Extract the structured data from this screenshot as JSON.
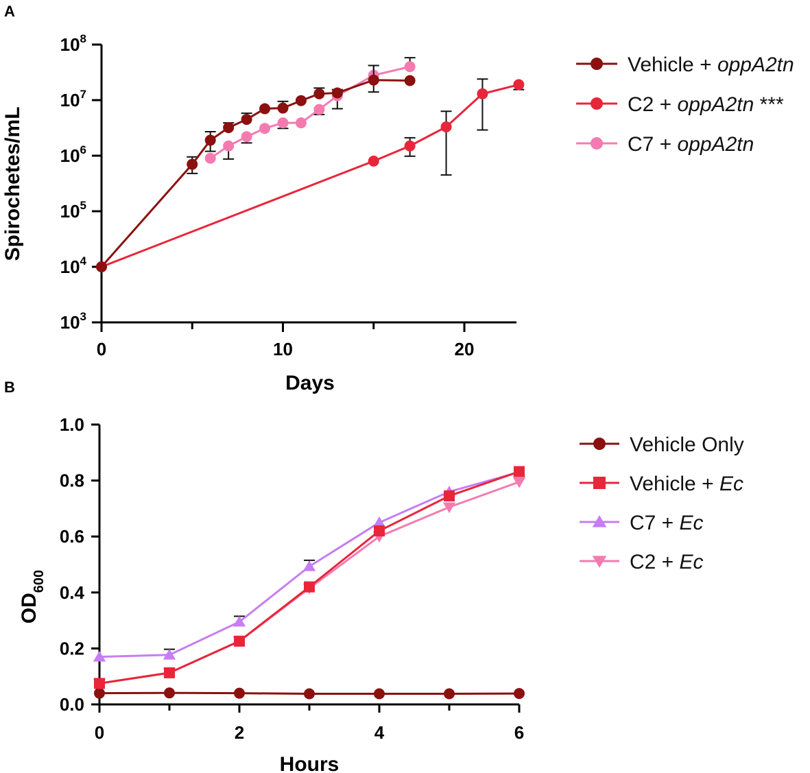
{
  "chart_data": [
    {
      "panel": "A",
      "type": "line",
      "xlabel": "Days",
      "ylabel": "Spirochetes/mL",
      "yscale": "log",
      "xlim": [
        0,
        23
      ],
      "ylim_exp": [
        3,
        8
      ],
      "xticks": [
        0,
        10,
        20
      ],
      "yticks": [
        {
          "base": "10",
          "exp": "3",
          "value": 3
        },
        {
          "base": "10",
          "exp": "4",
          "value": 4
        },
        {
          "base": "10",
          "exp": "5",
          "value": 5
        },
        {
          "base": "10",
          "exp": "6",
          "value": 6
        },
        {
          "base": "10",
          "exp": "7",
          "value": 7
        },
        {
          "base": "10",
          "exp": "8",
          "value": 8
        }
      ],
      "minor_xticks": [
        5,
        15
      ],
      "series": [
        {
          "name": "Vehicle + oppA2tn",
          "label_plain": "Vehicle + ",
          "label_italic": "oppA2tn",
          "label_suffix": "",
          "color": "#8B1010",
          "marker": "circle",
          "points": [
            {
              "x": 0,
              "y": 10000
            },
            {
              "x": 5,
              "y": 700000,
              "err_hi": 950000,
              "err_lo": 480000
            },
            {
              "x": 6,
              "y": 1900000,
              "err_hi": 2700000,
              "err_lo": 1200000
            },
            {
              "x": 7,
              "y": 3200000,
              "err_hi": 3900000
            },
            {
              "x": 8,
              "y": 4500000,
              "err_hi": 5800000
            },
            {
              "x": 9,
              "y": 7000000
            },
            {
              "x": 10,
              "y": 7200000,
              "err_hi": 9500000
            },
            {
              "x": 11,
              "y": 9800000
            },
            {
              "x": 12,
              "y": 13000000,
              "err_hi": 16500000
            },
            {
              "x": 13,
              "y": 13500000,
              "err_hi": 15500000
            },
            {
              "x": 15,
              "y": 23000000,
              "err_hi": 42000000,
              "err_lo": 14000000
            },
            {
              "x": 17,
              "y": 22500000
            }
          ]
        },
        {
          "name": "C2 + oppA2tn ***",
          "label_plain": "C2 + ",
          "label_italic": "oppA2tn",
          "label_suffix": " ***",
          "color": "#E8263A",
          "marker": "circle",
          "points": [
            {
              "x": 0,
              "y": 10000
            },
            {
              "x": 15,
              "y": 800000
            },
            {
              "x": 17,
              "y": 1500000,
              "err_hi": 2100000,
              "err_lo": 980000
            },
            {
              "x": 19,
              "y": 3300000,
              "err_hi": 6300000,
              "err_lo": 450000
            },
            {
              "x": 21,
              "y": 13000000,
              "err_hi": 24000000,
              "err_lo": 2900000
            },
            {
              "x": 23,
              "y": 19000000,
              "err_lo": 15500000
            }
          ]
        },
        {
          "name": "C7 + oppA2tn",
          "label_plain": "C7 + ",
          "label_italic": "oppA2tn",
          "label_suffix": "",
          "color": "#F47BB0",
          "marker": "circle",
          "points": [
            {
              "x": 6,
              "y": 900000
            },
            {
              "x": 7,
              "y": 1500000,
              "err_lo": 870000
            },
            {
              "x": 8,
              "y": 2200000,
              "err_lo": 1700000
            },
            {
              "x": 9,
              "y": 3100000
            },
            {
              "x": 10,
              "y": 3900000,
              "err_lo": 3100000
            },
            {
              "x": 11,
              "y": 3900000
            },
            {
              "x": 12,
              "y": 6800000,
              "err_lo": 5500000
            },
            {
              "x": 13,
              "y": 12000000,
              "err_lo": 7000000
            },
            {
              "x": 15,
              "y": 28000000,
              "err_hi": 42000000
            },
            {
              "x": 17,
              "y": 40000000,
              "err_hi": 58000000
            }
          ]
        }
      ]
    },
    {
      "panel": "B",
      "type": "line",
      "xlabel": "Hours",
      "ylabel_main": "OD",
      "ylabel_sub": "600",
      "xlim": [
        0,
        6
      ],
      "ylim": [
        0,
        1
      ],
      "xticks": [
        "0",
        "2",
        "4",
        "6"
      ],
      "xtick_values": [
        0,
        2,
        4,
        6
      ],
      "minor_xticks": [
        1,
        3,
        5
      ],
      "yticks": [
        "0.0",
        "0.2",
        "0.4",
        "0.6",
        "0.8",
        "1.0"
      ],
      "ytick_values": [
        0,
        0.2,
        0.4,
        0.6,
        0.8,
        1.0
      ],
      "series": [
        {
          "name": "Vehicle Only",
          "label_plain": "Vehicle Only",
          "label_italic": "",
          "color": "#8B1010",
          "marker": "circle",
          "points": [
            {
              "x": 0,
              "y": 0.04
            },
            {
              "x": 1,
              "y": 0.041
            },
            {
              "x": 2,
              "y": 0.04
            },
            {
              "x": 3,
              "y": 0.038
            },
            {
              "x": 4,
              "y": 0.038
            },
            {
              "x": 5,
              "y": 0.038
            },
            {
              "x": 6,
              "y": 0.039
            }
          ]
        },
        {
          "name": "Vehicle + Ec",
          "label_plain": "Vehicle + ",
          "label_italic": "Ec",
          "color": "#E8263A",
          "marker": "square",
          "points": [
            {
              "x": 0,
              "y": 0.075
            },
            {
              "x": 1,
              "y": 0.113
            },
            {
              "x": 2,
              "y": 0.226
            },
            {
              "x": 3,
              "y": 0.42
            },
            {
              "x": 4,
              "y": 0.62
            },
            {
              "x": 5,
              "y": 0.745
            },
            {
              "x": 6,
              "y": 0.832
            }
          ]
        },
        {
          "name": "C7 + Ec",
          "label_plain": "C7 + ",
          "label_italic": "Ec",
          "color": "#C77DF3",
          "marker": "triangle-up",
          "points": [
            {
              "x": 0,
              "y": 0.17
            },
            {
              "x": 1,
              "y": 0.177,
              "err_hi": 0.197
            },
            {
              "x": 2,
              "y": 0.295,
              "err_hi": 0.315
            },
            {
              "x": 3,
              "y": 0.493,
              "err_hi": 0.515
            },
            {
              "x": 4,
              "y": 0.65
            },
            {
              "x": 5,
              "y": 0.76
            },
            {
              "x": 6,
              "y": 0.83
            }
          ]
        },
        {
          "name": "C2 + Ec",
          "label_plain": "C2 + ",
          "label_italic": "Ec",
          "color": "#F47BB0",
          "marker": "triangle-down",
          "points": [
            {
              "x": 0,
              "y": 0.075
            },
            {
              "x": 1,
              "y": 0.113
            },
            {
              "x": 2,
              "y": 0.226
            },
            {
              "x": 3,
              "y": 0.415
            },
            {
              "x": 4,
              "y": 0.6
            },
            {
              "x": 5,
              "y": 0.705
            },
            {
              "x": 6,
              "y": 0.795
            }
          ]
        }
      ]
    }
  ]
}
